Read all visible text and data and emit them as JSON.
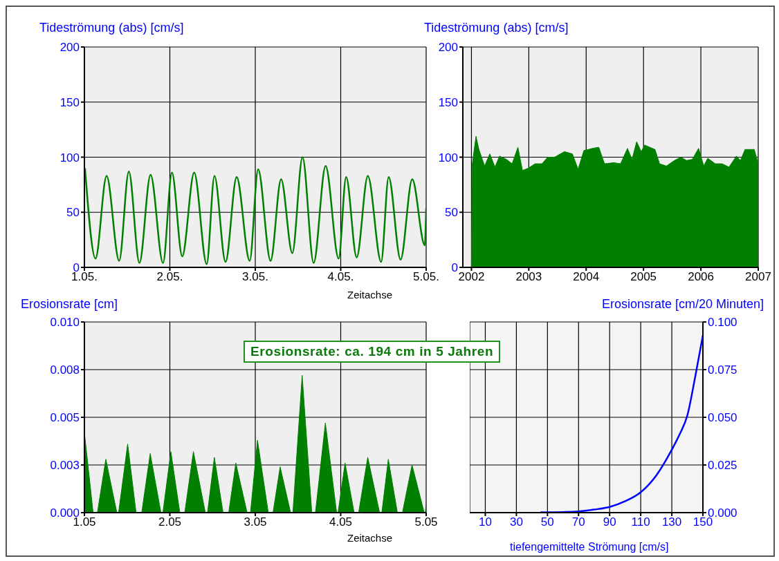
{
  "chart_data": [
    {
      "type": "line",
      "ylabel": "Tideströmung (abs) [cm/s]",
      "xlabel": "Zeitachse",
      "xlim": [
        "--05-01",
        "--05-05"
      ],
      "xticks": [
        {
          "value": "--05-01",
          "label": "1.05."
        },
        {
          "value": "--05-02",
          "label": "2.05."
        },
        {
          "value": "--05-03",
          "label": "3.05."
        },
        {
          "value": "--05-04",
          "label": "4.05."
        },
        {
          "value": "--05-05",
          "label": "5.05."
        }
      ],
      "ylim": [
        0,
        200
      ],
      "yticks": [
        0,
        50,
        100,
        150,
        200
      ],
      "grid": true,
      "series": [
        {
          "color": "#008000",
          "x": [
            "--05-01T00:10",
            "--05-01T03:07",
            "--05-01T06:14",
            "--05-01T09:46",
            "--05-01T12:29",
            "--05-01T15:27",
            "--05-01T18:35",
            "--05-01T22:05",
            "--05-02T00:35",
            "--05-02T03:29",
            "--05-02T06:50",
            "--05-02T10:21",
            "--05-02T12:32",
            "--05-02T15:39",
            "--05-02T18:46",
            "--05-02T22:26",
            "--05-03T00:48",
            "--05-03T04:18",
            "--05-03T07:15",
            "--05-03T10:24",
            "--05-03T13:16",
            "--05-03T16:24",
            "--05-03T19:45",
            "--05-03T23:25",
            "--05-04T01:31",
            "--05-04T04:29",
            "--05-04T07:37",
            "--05-04T11:21",
            "--05-04T13:28",
            "--05-04T16:49",
            "--05-04T20:05",
            "--05-04T23:37",
            "--05-05T00:00"
          ],
          "values": [
            90,
            8,
            83,
            6,
            87,
            4,
            84,
            4,
            86,
            10,
            86,
            3,
            83,
            5,
            82,
            6,
            89,
            6,
            80,
            13,
            100,
            4,
            92,
            8,
            82,
            9,
            83,
            5,
            82,
            7,
            80,
            20,
            54
          ]
        }
      ]
    },
    {
      "type": "area",
      "ylabel": "Tideströmung (abs) [cm/s]",
      "xlim": [
        2001.85,
        2007
      ],
      "xticks": [
        2002,
        2003,
        2004,
        2005,
        2006,
        2007
      ],
      "ylim": [
        0,
        200
      ],
      "yticks": [
        0,
        50,
        100,
        150,
        200
      ],
      "grid": true,
      "series": [
        {
          "color": "#007f00",
          "x": [
            2002.0,
            2002.01,
            2002.08,
            2002.13,
            2002.23,
            2002.32,
            2002.41,
            2002.49,
            2002.61,
            2002.71,
            2002.81,
            2002.89,
            2002.99,
            2003.11,
            2003.23,
            2003.33,
            2003.45,
            2003.62,
            2003.76,
            2003.86,
            2003.96,
            2004.04,
            2004.11,
            2004.22,
            2004.32,
            2004.48,
            2004.6,
            2004.72,
            2004.8,
            2004.88,
            2004.96,
            2005.02,
            2005.11,
            2005.2,
            2005.28,
            2005.4,
            2005.54,
            2005.65,
            2005.75,
            2005.85,
            2005.96,
            2006.05,
            2006.12,
            2006.25,
            2006.37,
            2006.49,
            2006.62,
            2006.69,
            2006.77,
            2006.85,
            2006.93,
            2007.0
          ],
          "values": [
            0,
            92,
            119,
            107,
            92,
            103,
            91,
            101,
            98,
            94,
            109,
            88,
            90,
            94,
            94,
            100,
            100,
            105,
            103,
            89,
            106,
            107,
            108,
            109,
            94,
            95,
            94,
            108,
            98,
            114,
            105,
            111,
            109,
            107,
            94,
            92,
            97,
            100,
            97,
            98,
            108,
            92,
            99,
            94,
            94,
            91,
            101,
            97,
            107,
            107,
            107,
            94
          ]
        }
      ]
    },
    {
      "type": "area",
      "ylabel": "Erosionsrate [cm]",
      "xlabel": "Zeitachse",
      "annotations": [
        "Erosionsrate: ca. 194 cm in 5 Jahren"
      ],
      "xlim": [
        "--05-01",
        "--05-05"
      ],
      "xticks": [
        {
          "value": "--05-01",
          "label": "1.05"
        },
        {
          "value": "--05-02",
          "label": "2.05"
        },
        {
          "value": "--05-03",
          "label": "3.05"
        },
        {
          "value": "--05-04",
          "label": "4.05"
        },
        {
          "value": "--05-05",
          "label": "5.05"
        }
      ],
      "ylim": [
        0,
        0.01
      ],
      "yticks": [
        {
          "value": 0,
          "label": "0.000"
        },
        {
          "value": 0.0025,
          "label": "0.003"
        },
        {
          "value": 0.005,
          "label": "0.005"
        },
        {
          "value": 0.0075,
          "label": "0.008"
        },
        {
          "value": 0.01,
          "label": "0.010"
        }
      ],
      "grid": true,
      "series": [
        {
          "color": "#007f00",
          "x": [
            "--05-01T00:00",
            "--05-01T02:27",
            "--05-01T03:39",
            "--05-01T06:01",
            "--05-01T09:07",
            "--05-01T09:36",
            "--05-01T12:09",
            "--05-01T14:31",
            "--05-01T16:06",
            "--05-01T18:29",
            "--05-01T21:30",
            "--05-01T22:03",
            "--05-02T00:17",
            "--05-02T02:48",
            "--05-02T04:11",
            "--05-02T06:37",
            "--05-02T09:58",
            "--05-02T10:35",
            "--05-02T12:30",
            "--05-02T14:57",
            "--05-02T16:32",
            "--05-02T18:32",
            "--05-02T21:42",
            "--05-02T22:39",
            "--05-03T00:37",
            "--05-03T03:39",
            "--05-03T04:59",
            "--05-03T06:59",
            "--05-03T09:55",
            "--05-03T10:34",
            "--05-03T13:10",
            "--05-03T15:52",
            "--05-03T16:54",
            "--05-03T19:41",
            "--05-03T22:51",
            "--05-03T23:15",
            "--05-04T01:13",
            "--05-04T03:46",
            "--05-04T05:02",
            "--05-04T07:35",
            "--05-04T10:55",
            "--05-04T11:33",
            "--05-04T13:22",
            "--05-04T15:55",
            "--05-04T17:20",
            "--05-04T20:02",
            "--05-04T23:27",
            "--05-04T23:46",
            "--05-05T00:00"
          ],
          "values": [
            0.0042,
            0,
            0,
            0.0028,
            0,
            0,
            0.0036,
            0,
            0,
            0.0031,
            0,
            0,
            0.0032,
            0,
            0,
            0.0032,
            0,
            0,
            0.0029,
            0,
            0,
            0.0026,
            0,
            0,
            0.0038,
            0,
            0,
            0.0024,
            0,
            0,
            0.0072,
            0,
            0,
            0.0047,
            0,
            0,
            0.0026,
            0,
            0,
            0.0029,
            0,
            0,
            0.0028,
            0,
            0,
            0.0025,
            0,
            0,
            0.0006
          ]
        }
      ]
    },
    {
      "type": "line",
      "y2label": "Erosionsrate [cm/20 Minuten]",
      "xlabel": "tiefengemittelte Strömung [cm/s]",
      "xlim": [
        0,
        150
      ],
      "xticks": [
        10,
        30,
        50,
        70,
        90,
        110,
        130,
        150
      ],
      "y2lim": [
        0,
        0.1
      ],
      "y2ticks": [
        {
          "value": 0,
          "label": "0.000"
        },
        {
          "value": 0.025,
          "label": "0.025"
        },
        {
          "value": 0.05,
          "label": "0.050"
        },
        {
          "value": 0.075,
          "label": "0.075"
        },
        {
          "value": 0.1,
          "label": "0.100"
        }
      ],
      "grid": true,
      "series": [
        {
          "color": "#0000ff",
          "axis": "y2",
          "x": [
            45.5,
            50,
            60,
            70,
            80,
            90,
            100,
            110,
            120,
            130,
            135,
            140,
            145,
            150
          ],
          "values": [
            0.0002,
            0.0002,
            0.0003,
            0.0006,
            0.0016,
            0.003,
            0.006,
            0.0107,
            0.0195,
            0.033,
            0.041,
            0.051,
            0.071,
            0.093
          ]
        }
      ]
    }
  ]
}
